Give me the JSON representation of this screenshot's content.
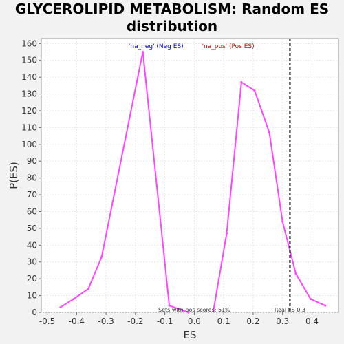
{
  "chart_data": {
    "type": "line",
    "title_line1": "GLYCEROLIPID METABOLISM: Random ES",
    "title_line2": "distribution",
    "xlabel": "ES",
    "ylabel": "P(ES)",
    "xlim": [
      -0.52,
      0.49
    ],
    "ylim": [
      0,
      163
    ],
    "x_ticks": [
      -0.5,
      -0.4,
      -0.3,
      -0.2,
      -0.1,
      0.0,
      0.1,
      0.2,
      0.3,
      0.4
    ],
    "x_tick_labels": [
      "-0.5",
      "-0.4",
      "-0.3",
      "-0.2",
      "-0.1",
      "0.0",
      "0.1",
      "0.2",
      "0.3",
      "0.4"
    ],
    "y_ticks": [
      0,
      10,
      20,
      30,
      40,
      50,
      60,
      70,
      80,
      90,
      100,
      110,
      120,
      130,
      140,
      150,
      160
    ],
    "grid": true,
    "series": [
      {
        "color": "#ff44ff",
        "x": [
          -0.455,
          -0.41,
          -0.36,
          -0.315,
          -0.175,
          -0.085,
          -0.02
        ],
        "y": [
          3,
          8,
          14,
          33,
          155,
          4,
          0
        ]
      },
      {
        "color": "#ff44ff",
        "x": [
          0.065,
          0.11,
          0.16,
          0.205,
          0.255,
          0.3,
          0.345,
          0.395,
          0.445
        ],
        "y": [
          1,
          47,
          137,
          132,
          107,
          54,
          23,
          8,
          4
        ]
      }
    ],
    "real_es": 0.325,
    "legend": [
      {
        "text": "'na_neg' (Neg ES)",
        "color": "#0000cc"
      },
      {
        "text": "'na_pos' (Pos ES)",
        "color": "#cc0000"
      }
    ],
    "annotations": {
      "pos_scores": "Sets with pos scores: 51%",
      "real_es": "Real ES 0.3"
    }
  }
}
